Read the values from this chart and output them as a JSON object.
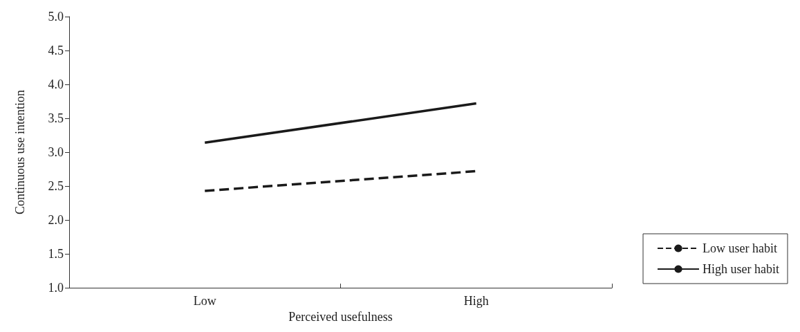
{
  "chart_data": {
    "type": "line",
    "xlabel": "Perceived usefulness",
    "ylabel": "Continuous use intention",
    "categories": [
      "Low",
      "High"
    ],
    "series": [
      {
        "name": "Low user habit",
        "color": "#1a1a1a",
        "line_style": "dashed",
        "values": [
          2.43,
          2.72
        ]
      },
      {
        "name": "High user habit",
        "color": "#1a1a1a",
        "line_style": "solid",
        "values": [
          3.14,
          3.72
        ]
      }
    ],
    "ylim": [
      1,
      5
    ],
    "yticks": [
      {
        "value": 1,
        "label": "1.0"
      },
      {
        "value": 1.5,
        "label": "1.5"
      },
      {
        "value": 2,
        "label": "2.0"
      },
      {
        "value": 2.5,
        "label": "2.5"
      },
      {
        "value": 3,
        "label": "3.0"
      },
      {
        "value": 3.5,
        "label": "3.5"
      },
      {
        "value": 4,
        "label": "4.0"
      },
      {
        "value": 4.5,
        "label": "4.5"
      },
      {
        "value": 5,
        "label": "5.0"
      }
    ],
    "grid": false,
    "legend": "bottom right",
    "marker": "none"
  }
}
